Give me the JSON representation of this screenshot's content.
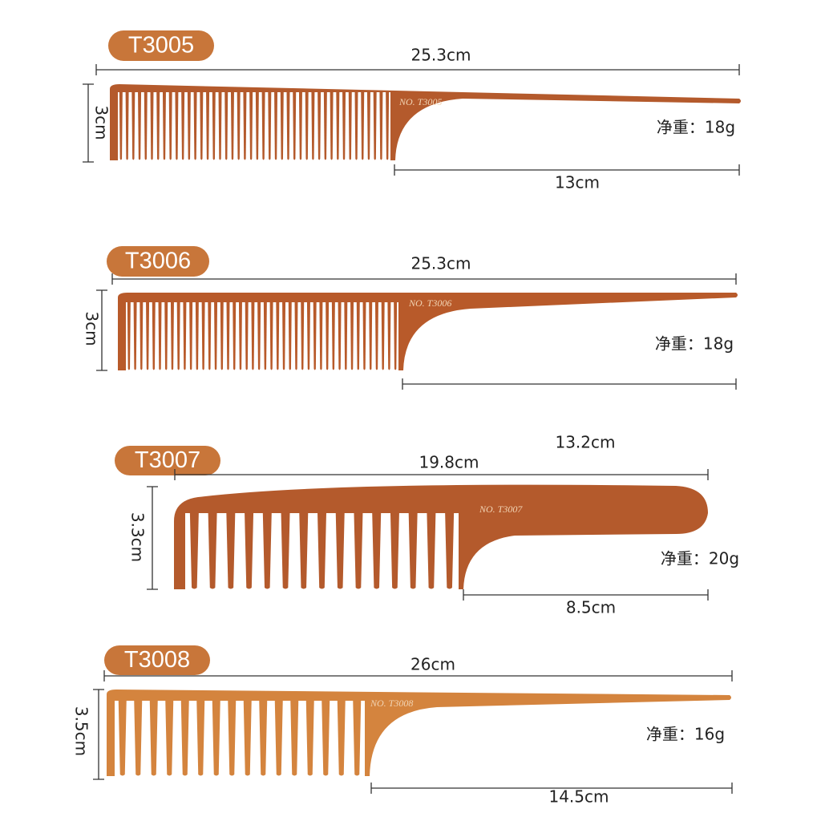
{
  "products": [
    {
      "model": "T3005",
      "length": "25.3cm",
      "height": "3cm",
      "weight": "净重：18g",
      "handle": "13cm",
      "engraving": "NO. T3005"
    },
    {
      "model": "T3006",
      "length": "25.3cm",
      "height": "3cm",
      "weight": "净重：18g",
      "engraving": "NO. T3006"
    },
    {
      "model": "T3007",
      "length": "19.8cm",
      "extra": "13.2cm",
      "height": "3.3cm",
      "weight": "净重：20g",
      "handle": "8.5cm",
      "engraving": "NO. T3007"
    },
    {
      "model": "T3008",
      "length": "26cm",
      "height": "3.5cm",
      "weight": "净重：16g",
      "handle": "14.5cm",
      "engraving": "NO. T3008"
    }
  ]
}
